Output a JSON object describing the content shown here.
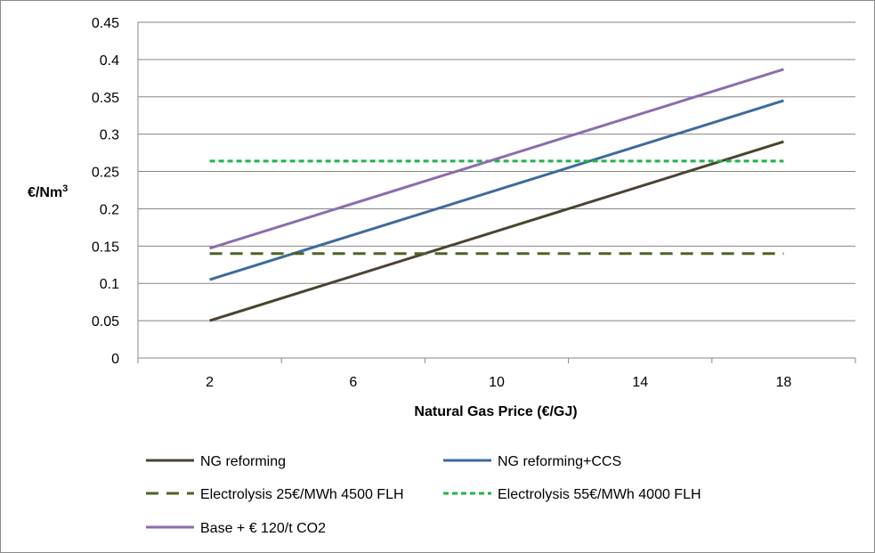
{
  "chart_data": {
    "type": "line",
    "xlabel": "Natural Gas Price (€/GJ)",
    "ylabel": "€/Nm",
    "ylabel_superscript": "3",
    "x": [
      2,
      18
    ],
    "xticks": [
      "2",
      "6",
      "10",
      "14",
      "18"
    ],
    "xlim": [
      0,
      20
    ],
    "ylim": [
      0,
      0.45
    ],
    "yticks": [
      "0",
      "0.05",
      "0.1",
      "0.15",
      "0.2",
      "0.25",
      "0.3",
      "0.35",
      "0.4",
      "0.45"
    ],
    "grid": "horizontal",
    "legend_position": "bottom",
    "series": [
      {
        "name": "NG reforming",
        "values": [
          0.05,
          0.29
        ],
        "color": "#4a4430",
        "style": "solid"
      },
      {
        "name": "NG reforming+CCS",
        "values": [
          0.105,
          0.345
        ],
        "color": "#3d6b9c",
        "style": "solid"
      },
      {
        "name": "Electrolysis 25€/MWh 4500 FLH",
        "values": [
          0.14,
          0.14
        ],
        "color": "#4f6228",
        "style": "dashed"
      },
      {
        "name": "Electrolysis 55€/MWh 4000 FLH",
        "values": [
          0.264,
          0.264
        ],
        "color": "#22b14c",
        "style": "dotted"
      },
      {
        "name": "Base + € 120/t CO2",
        "values": [
          0.147,
          0.387
        ],
        "color": "#8b6dae",
        "style": "solid"
      }
    ]
  }
}
